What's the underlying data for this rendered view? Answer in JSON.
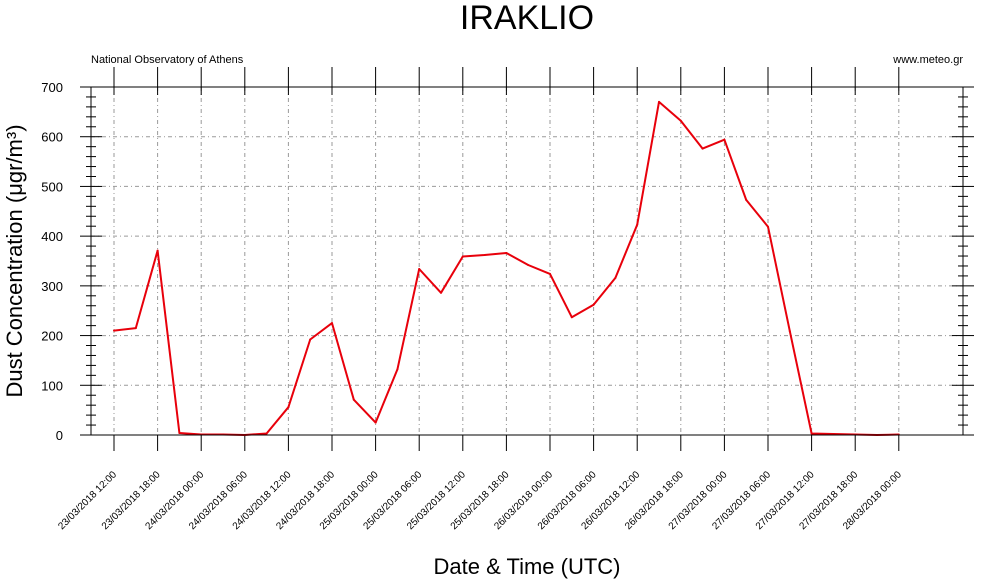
{
  "title": "IRAKLIO",
  "source_left": "National Observatory of Athens",
  "source_right": "www.meteo.gr",
  "chart_data": {
    "type": "line",
    "title": "IRAKLIO",
    "xlabel": "Date & Time (UTC)",
    "ylabel": "Dust Concentration (μgr/m³)",
    "ylim": [
      0,
      700
    ],
    "yticks": [
      0,
      100,
      200,
      300,
      400,
      500,
      600,
      700
    ],
    "grid": true,
    "x_labels": [
      "23/03/2018 12:00",
      "23/03/2018 18:00",
      "24/03/2018 00:00",
      "24/03/2018 06:00",
      "24/03/2018 12:00",
      "24/03/2018 18:00",
      "25/03/2018 00:00",
      "25/03/2018 06:00",
      "25/03/2018 12:00",
      "25/03/2018 18:00",
      "26/03/2018 00:00",
      "26/03/2018 06:00",
      "26/03/2018 12:00",
      "26/03/2018 18:00",
      "27/03/2018 00:00",
      "27/03/2018 06:00",
      "27/03/2018 12:00",
      "27/03/2018 18:00",
      "28/03/2018 00:00"
    ],
    "series": [
      {
        "color": "#e8000b",
        "x": [
          "23/03/2018 12:00",
          "23/03/2018 15:00",
          "23/03/2018 18:00",
          "23/03/2018 21:00",
          "24/03/2018 00:00",
          "24/03/2018 03:00",
          "24/03/2018 06:00",
          "24/03/2018 09:00",
          "24/03/2018 12:00",
          "24/03/2018 15:00",
          "24/03/2018 18:00",
          "24/03/2018 21:00",
          "25/03/2018 00:00",
          "25/03/2018 03:00",
          "25/03/2018 06:00",
          "25/03/2018 09:00",
          "25/03/2018 12:00",
          "25/03/2018 15:00",
          "25/03/2018 18:00",
          "25/03/2018 21:00",
          "26/03/2018 00:00",
          "26/03/2018 03:00",
          "26/03/2018 06:00",
          "26/03/2018 09:00",
          "26/03/2018 12:00",
          "26/03/2018 15:00",
          "26/03/2018 18:00",
          "26/03/2018 21:00",
          "27/03/2018 00:00",
          "27/03/2018 03:00",
          "27/03/2018 06:00",
          "27/03/2018 09:00",
          "27/03/2018 12:00",
          "27/03/2018 15:00",
          "27/03/2018 18:00",
          "27/03/2018 21:00",
          "28/03/2018 00:00"
        ],
        "values": [
          210,
          215,
          371,
          4,
          1,
          1,
          0,
          3,
          56,
          192,
          225,
          71,
          25,
          132,
          334,
          286,
          359,
          362,
          366,
          342,
          324,
          237,
          262,
          316,
          423,
          670,
          632,
          576,
          594,
          473,
          419,
          209,
          3,
          2,
          1,
          0,
          1
        ]
      }
    ]
  }
}
